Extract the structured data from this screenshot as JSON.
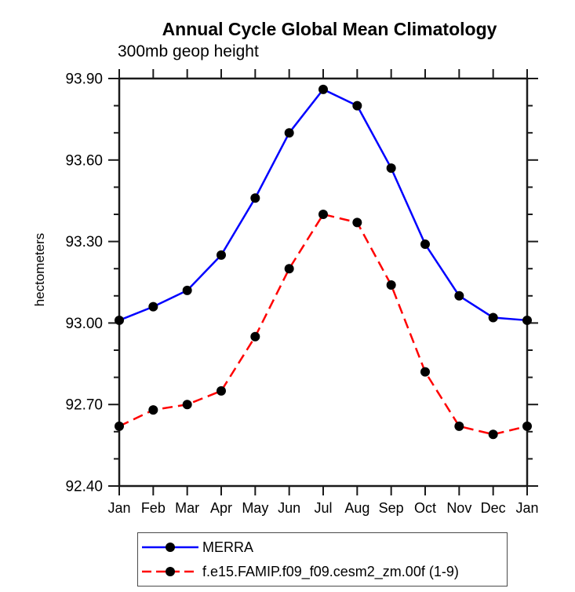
{
  "chart": {
    "title": "Annual Cycle Global Mean Climatology",
    "subtitle": "300mb geop height"
  },
  "chart_data": {
    "type": "line",
    "categories": [
      "Jan",
      "Feb",
      "Mar",
      "Apr",
      "May",
      "Jun",
      "Jul",
      "Aug",
      "Sep",
      "Oct",
      "Nov",
      "Dec",
      "Jan"
    ],
    "series": [
      {
        "name": "MERRA",
        "color": "#0000ff",
        "line_style": "solid",
        "marker": "filled-circle",
        "marker_color": "#000000",
        "values": [
          93.01,
          93.06,
          93.12,
          93.25,
          93.46,
          93.7,
          93.86,
          93.8,
          93.57,
          93.29,
          93.1,
          93.02,
          93.01
        ]
      },
      {
        "name": "f.e15.FAMIP.f09_f09.cesm2_zm.00f (1-9)",
        "color": "#ff0000",
        "line_style": "dashed",
        "marker": "filled-circle",
        "marker_color": "#000000",
        "values": [
          92.62,
          92.68,
          92.7,
          92.75,
          92.95,
          93.2,
          93.4,
          93.37,
          93.14,
          92.82,
          92.62,
          92.59,
          92.62
        ]
      }
    ],
    "xlabel": "",
    "ylabel": "hectometers",
    "ylim": [
      92.4,
      93.9
    ],
    "yticks": {
      "major_step": 0.3,
      "minor_step": 0.1,
      "major_labels": [
        "92.40",
        "92.70",
        "93.00",
        "93.30",
        "93.60",
        "93.90"
      ]
    },
    "grid": false,
    "legend_position": "bottom"
  }
}
